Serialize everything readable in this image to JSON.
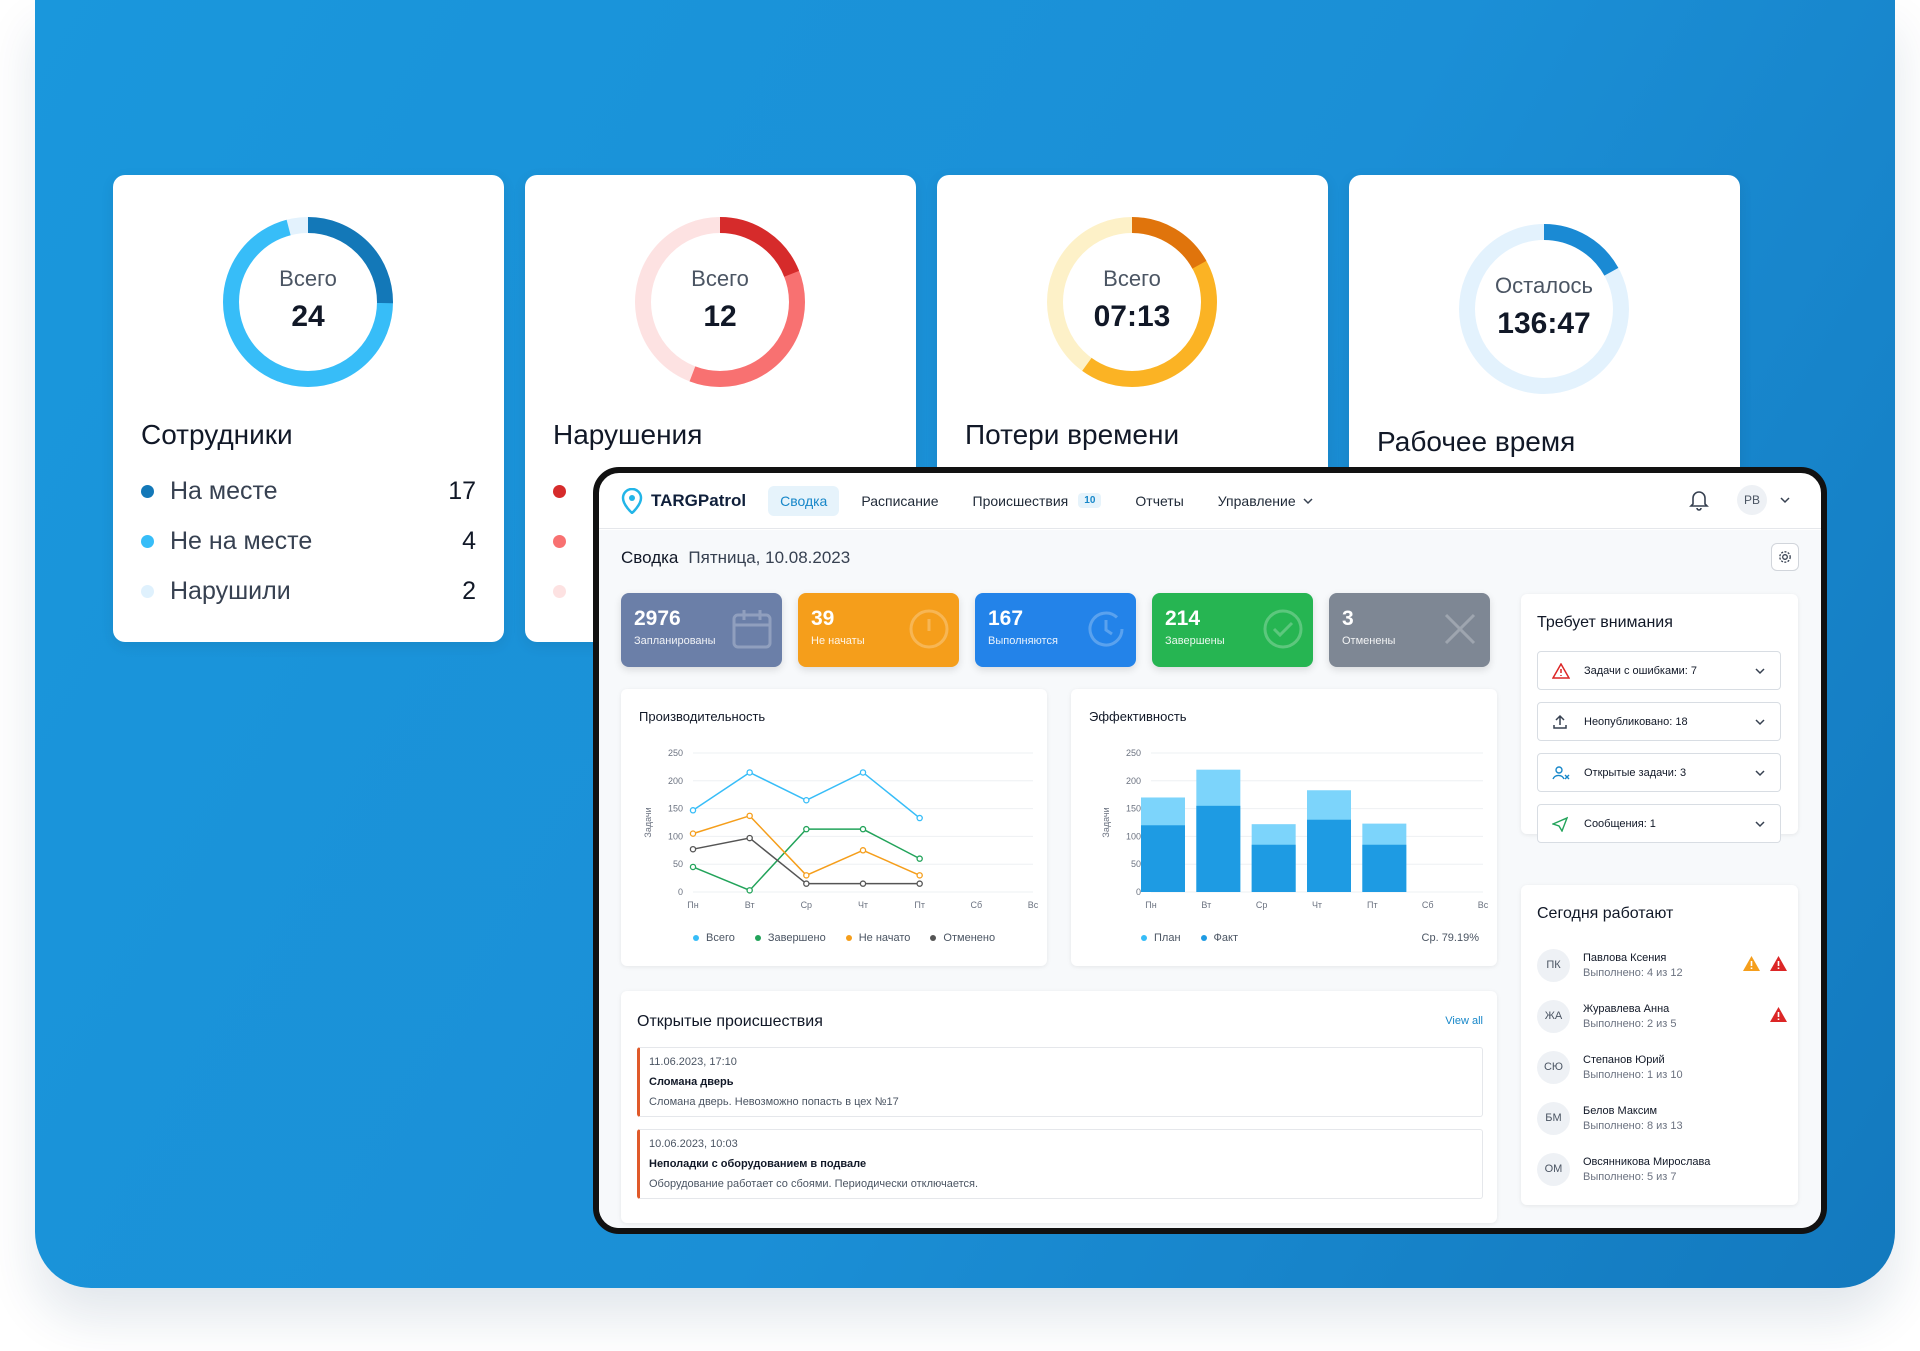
{
  "stat_cards": [
    {
      "total_label": "Всего",
      "total_value": "24",
      "title": "Сотрудники",
      "rows": [
        {
          "label": "На месте",
          "value": "17",
          "color": "#1378b8"
        },
        {
          "label": "Не на месте",
          "value": "4",
          "color": "#37bdf8"
        },
        {
          "label": "Нарушили",
          "value": "2",
          "color": "#dff1fd"
        }
      ]
    },
    {
      "total_label": "Всего",
      "total_value": "12",
      "title": "Нарушения",
      "rows": [
        {
          "label": "",
          "value": "",
          "color": "#d62b2b"
        },
        {
          "label": "",
          "value": "",
          "color": "#f87171"
        },
        {
          "label": "",
          "value": "",
          "color": "#fde2e2"
        }
      ]
    },
    {
      "total_label": "Всего",
      "total_value": "07:13",
      "title": "Потери времени"
    },
    {
      "total_label": "Осталось",
      "total_value": "136:47",
      "title": "Рабочее время"
    }
  ],
  "app": {
    "brand": "TARGPatrol",
    "nav": [
      {
        "label": "Сводка",
        "active": true
      },
      {
        "label": "Расписание"
      },
      {
        "label": "Происшествия",
        "badge": "10"
      },
      {
        "label": "Отчеты"
      },
      {
        "label": "Управление",
        "dropdown": true
      }
    ],
    "user_initials": "РВ"
  },
  "breadcrumb": {
    "title": "Сводка",
    "date": "Пятница, 10.08.2023"
  },
  "kpis": [
    {
      "value": "2976",
      "label": "Запланированы",
      "color": "#6b7fa8",
      "icon": "calendar-icon"
    },
    {
      "value": "39",
      "label": "Не начаты",
      "color": "#f59e1b",
      "icon": "clock-icon"
    },
    {
      "value": "167",
      "label": "Выполняются",
      "color": "#2383e9",
      "icon": "sync-clock-icon"
    },
    {
      "value": "214",
      "label": "Завершены",
      "color": "#26b552",
      "icon": "check-circle-icon"
    },
    {
      "value": "3",
      "label": "Отменены",
      "color": "#7e8794",
      "icon": "close-icon"
    }
  ],
  "productivity": {
    "title": "Производительность",
    "ylabel": "Задачи",
    "yticks": [
      "250",
      "200",
      "150",
      "100",
      "50",
      "0"
    ],
    "xticks": [
      "Пн",
      "Вт",
      "Ср",
      "Чт",
      "Пт",
      "Сб",
      "Вс"
    ],
    "legend": [
      {
        "label": "Всего",
        "color": "#37bdf8"
      },
      {
        "label": "Завершено",
        "color": "#22a35a"
      },
      {
        "label": "Не начато",
        "color": "#f59e1b"
      },
      {
        "label": "Отменено",
        "color": "#555"
      }
    ]
  },
  "efficiency": {
    "title": "Эффективность",
    "ylabel": "Задачи",
    "yticks": [
      "250",
      "200",
      "150",
      "100",
      "50",
      "0"
    ],
    "xticks": [
      "Пн",
      "Вт",
      "Ср",
      "Чт",
      "Пт",
      "Сб",
      "Вс"
    ],
    "legend": [
      {
        "label": "План",
        "color": "#37bdf8"
      },
      {
        "label": "Факт",
        "color": "#1e9be3"
      }
    ],
    "avg": "Ср. 79.19%"
  },
  "chart_data": [
    {
      "type": "line",
      "title": "Производительность",
      "ylabel": "Задачи",
      "ylim": [
        0,
        250
      ],
      "x": [
        "Пн",
        "Вт",
        "Ср",
        "Чт",
        "Пт"
      ],
      "series": [
        {
          "name": "Всего",
          "values": [
            147,
            215,
            165,
            215,
            133
          ]
        },
        {
          "name": "Завершено",
          "values": [
            45,
            3,
            113,
            113,
            60
          ]
        },
        {
          "name": "Не начато",
          "values": [
            105,
            137,
            30,
            75,
            30
          ]
        },
        {
          "name": "Отменено",
          "values": [
            77,
            97,
            15,
            15,
            15
          ]
        }
      ]
    },
    {
      "type": "bar",
      "title": "Эффективность",
      "ylabel": "Задачи",
      "ylim": [
        0,
        250
      ],
      "categories": [
        "Пн",
        "Вт",
        "Ср",
        "Чт",
        "Пт"
      ],
      "series": [
        {
          "name": "План",
          "values": [
            170,
            220,
            122,
            183,
            123
          ]
        },
        {
          "name": "Факт",
          "values": [
            120,
            155,
            85,
            130,
            85
          ]
        }
      ]
    }
  ],
  "attention": {
    "title": "Требует внимания",
    "items": [
      {
        "label": "Задачи с ошибками: 7",
        "icon": "warning-icon"
      },
      {
        "label": "Неопубликовано: 18",
        "icon": "upload-icon"
      },
      {
        "label": "Открытые задачи: 3",
        "icon": "user-tasks-icon"
      },
      {
        "label": "Сообщения: 1",
        "icon": "send-icon"
      }
    ]
  },
  "working_today": {
    "title": "Сегодня работают",
    "employees": [
      {
        "initials": "ПК",
        "name": "Павлова Ксения",
        "status": "Выполнено: 4 из 12",
        "warn_orange": true,
        "warn_red": true
      },
      {
        "initials": "ЖА",
        "name": "Журавлева Анна",
        "status": "Выполнено: 2 из 5",
        "warn_red": true
      },
      {
        "initials": "СЮ",
        "name": "Степанов Юрий",
        "status": "Выполнено: 1 из 10"
      },
      {
        "initials": "БМ",
        "name": "Белов Максим",
        "status": "Выполнено: 8 из 13"
      },
      {
        "initials": "ОМ",
        "name": "Овсянникова Мирослава",
        "status": "Выполнено: 5 из 7"
      }
    ]
  },
  "incidents": {
    "title": "Открытые происшествия",
    "view_all": "View all",
    "items": [
      {
        "time": "11.06.2023, 17:10",
        "title": "Сломана дверь",
        "desc": "Сломана дверь. Невозможно попасть в цех №17"
      },
      {
        "time": "10.06.2023, 10:03",
        "title": "Неполадки с оборудованием в подвале",
        "desc": "Оборудование работает со сбоями. Периодически отключается."
      }
    ]
  }
}
